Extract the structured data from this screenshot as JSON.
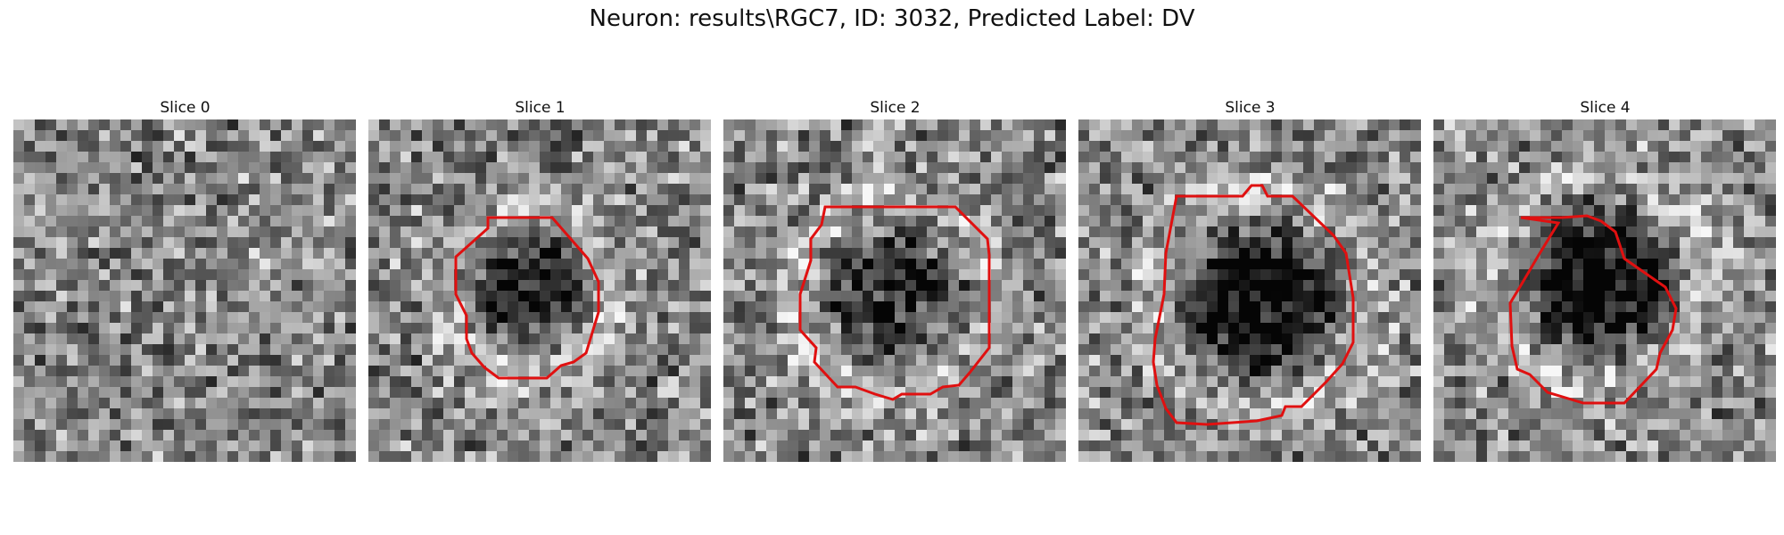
{
  "figure": {
    "title": "Neuron: results\\RGC7, ID: 3032, Predicted Label: DV"
  },
  "contour_color": "#e01010",
  "panels": [
    {
      "label": "Slice 0",
      "has_contour": false,
      "dark_region_strength": 0.0
    },
    {
      "label": "Slice 1",
      "has_contour": true,
      "dark_region_strength": 0.45
    },
    {
      "label": "Slice 2",
      "has_contour": true,
      "dark_region_strength": 0.35
    },
    {
      "label": "Slice 3",
      "has_contour": true,
      "dark_region_strength": 0.55
    },
    {
      "label": "Slice 4",
      "has_contour": true,
      "dark_region_strength": 0.6
    }
  ]
}
